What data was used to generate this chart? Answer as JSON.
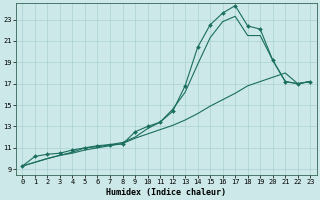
{
  "title": "",
  "xlabel": "Humidex (Indice chaleur)",
  "ylabel": "",
  "bg_color": "#cce8e8",
  "grid_color": "#aad0d0",
  "line_color": "#1a6e5e",
  "xlim": [
    -0.5,
    23.5
  ],
  "ylim": [
    8.5,
    24.5
  ],
  "xticks": [
    0,
    1,
    2,
    3,
    4,
    5,
    6,
    7,
    8,
    9,
    10,
    11,
    12,
    13,
    14,
    15,
    16,
    17,
    18,
    19,
    20,
    21,
    22,
    23
  ],
  "yticks": [
    9,
    11,
    13,
    15,
    17,
    19,
    21,
    23
  ],
  "line1_x": [
    0,
    1,
    2,
    3,
    4,
    5,
    6,
    7,
    8,
    9,
    10,
    11,
    12,
    13,
    14,
    15,
    16,
    17,
    18,
    19,
    20,
    21,
    22,
    23
  ],
  "line1_y": [
    9.3,
    10.2,
    10.4,
    10.5,
    10.8,
    11.0,
    11.2,
    11.3,
    11.35,
    12.5,
    13.0,
    13.4,
    14.4,
    16.8,
    20.4,
    22.5,
    23.6,
    24.3,
    22.4,
    22.1,
    19.2,
    17.2,
    17.0,
    17.2
  ],
  "line2_x": [
    0,
    2,
    3,
    4,
    5,
    6,
    7,
    8,
    9,
    10,
    11,
    12,
    13,
    14,
    15,
    16,
    17,
    18,
    19,
    20,
    21,
    22,
    23
  ],
  "line2_y": [
    9.3,
    10.0,
    10.3,
    10.6,
    11.0,
    11.1,
    11.3,
    11.5,
    12.0,
    12.8,
    13.4,
    14.6,
    16.2,
    18.8,
    21.3,
    22.8,
    23.3,
    21.5,
    21.5,
    19.2,
    17.2,
    17.0,
    17.2
  ],
  "line3_x": [
    0,
    2,
    3,
    4,
    5,
    6,
    7,
    8,
    9,
    10,
    11,
    12,
    13,
    14,
    15,
    16,
    17,
    18,
    19,
    20,
    21,
    22,
    23
  ],
  "line3_y": [
    9.3,
    10.0,
    10.3,
    10.5,
    10.8,
    11.0,
    11.2,
    11.4,
    11.9,
    12.3,
    12.7,
    13.1,
    13.6,
    14.2,
    14.9,
    15.5,
    16.1,
    16.8,
    17.2,
    17.6,
    18.0,
    17.0,
    17.2
  ],
  "xlabel_fontsize": 6,
  "tick_fontsize": 5,
  "marker": "D",
  "markersize": 2.0
}
